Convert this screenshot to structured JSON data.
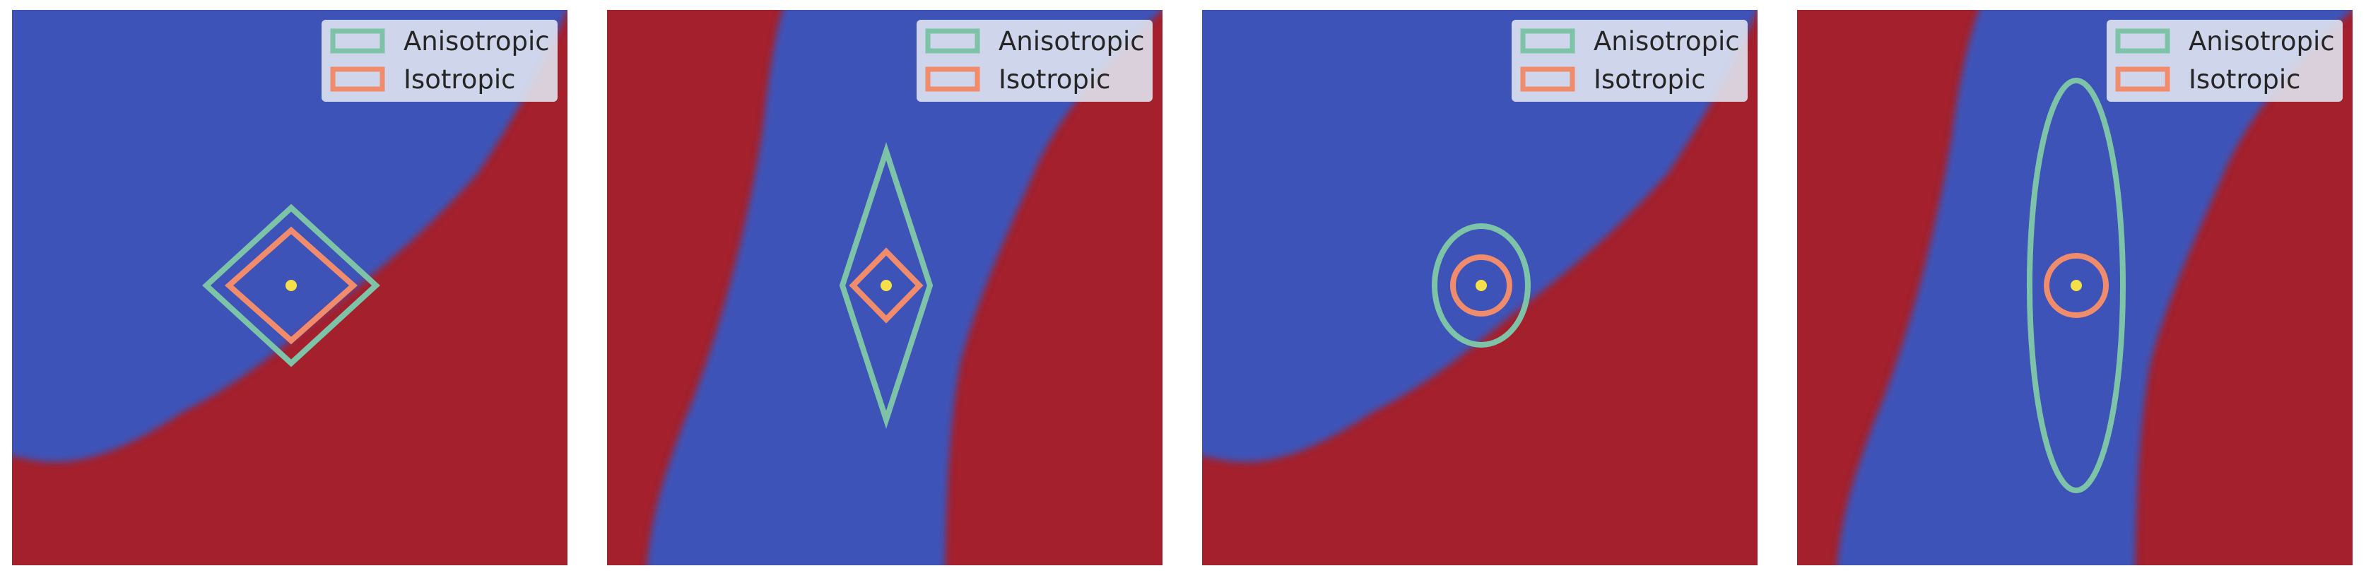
{
  "colors": {
    "region_a": "#a3202c",
    "region_b": "#3d52b8",
    "anisotropic": "#7cc3a7",
    "isotropic": "#f08c6c",
    "center_point": "#f5e04a",
    "legend_bg": "#dfe3ef"
  },
  "legend": {
    "anisotropic_label": "Anisotropic",
    "isotropic_label": "Isotropic"
  },
  "panels": [
    {
      "norm": "L1",
      "boundary": "curve"
    },
    {
      "norm": "L1",
      "boundary": "band"
    },
    {
      "norm": "L2",
      "boundary": "curve"
    },
    {
      "norm": "L2",
      "boundary": "band"
    }
  ]
}
